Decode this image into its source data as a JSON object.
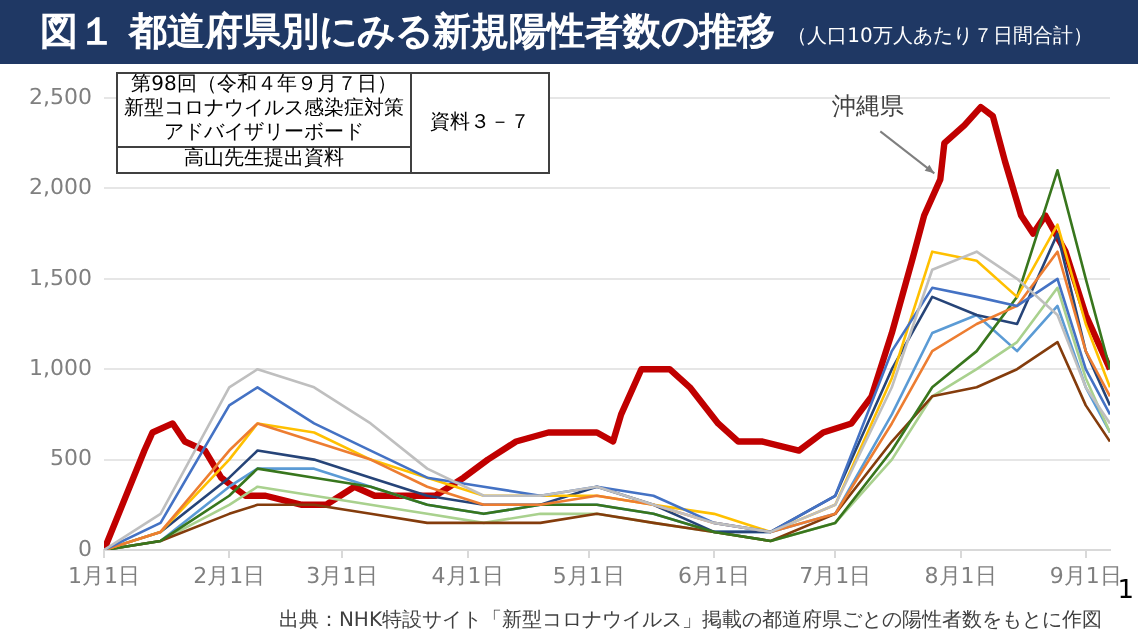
{
  "chart_data": {
    "type": "line",
    "title": "図１ 都道府県別にみる新規陽性者数の推移",
    "subtitle": "（人口10万人あたり７日間合計）",
    "x": [
      "--01-01",
      "--01-15",
      "--02-01",
      "--02-08",
      "--02-22",
      "--03-08",
      "--03-22",
      "--04-05",
      "--04-19",
      "--05-03",
      "--05-17",
      "--06-01",
      "--06-15",
      "--07-01",
      "--07-15",
      "--07-25",
      "--08-05",
      "--08-15",
      "--08-25",
      "--09-01",
      "--09-07"
    ],
    "series": [
      {
        "color": "#bfbfbf",
        "values": [
          0,
          200,
          900,
          1000,
          900,
          700,
          450,
          300,
          300,
          350,
          250,
          150,
          100,
          250,
          900,
          1550,
          1650,
          1500,
          1300,
          900,
          700
        ]
      },
      {
        "color": "#4472c4",
        "values": [
          0,
          150,
          800,
          900,
          700,
          550,
          400,
          350,
          300,
          350,
          300,
          150,
          100,
          300,
          1100,
          1450,
          1400,
          1350,
          1500,
          1000,
          750
        ]
      },
      {
        "color": "#ed7d31",
        "values": [
          0,
          100,
          550,
          700,
          600,
          500,
          350,
          250,
          250,
          300,
          250,
          150,
          100,
          200,
          700,
          1100,
          1250,
          1350,
          1650,
          1100,
          850
        ]
      },
      {
        "color": "#ffc000",
        "values": [
          0,
          100,
          500,
          700,
          650,
          500,
          400,
          300,
          300,
          300,
          250,
          200,
          100,
          250,
          950,
          1650,
          1600,
          1400,
          1800,
          1250,
          900
        ]
      },
      {
        "color": "#38761d",
        "values": [
          0,
          50,
          300,
          450,
          400,
          350,
          250,
          200,
          250,
          250,
          200,
          100,
          50,
          150,
          550,
          900,
          1100,
          1400,
          2100,
          1500,
          1000
        ]
      },
      {
        "color": "#264478",
        "values": [
          0,
          100,
          400,
          550,
          500,
          400,
          300,
          250,
          250,
          350,
          250,
          100,
          100,
          300,
          1000,
          1400,
          1300,
          1250,
          1750,
          1100,
          800
        ]
      },
      {
        "color": "#843c0c",
        "values": [
          0,
          50,
          200,
          250,
          250,
          200,
          150,
          150,
          150,
          200,
          150,
          100,
          50,
          200,
          600,
          850,
          900,
          1000,
          1150,
          800,
          600
        ]
      },
      {
        "color": "#a9d18e",
        "values": [
          0,
          50,
          250,
          350,
          300,
          250,
          200,
          150,
          200,
          200,
          150,
          100,
          50,
          150,
          500,
          850,
          1000,
          1150,
          1450,
          950,
          650
        ]
      },
      {
        "color": "#5b9bd5",
        "values": [
          0,
          50,
          350,
          450,
          450,
          350,
          250,
          200,
          250,
          250,
          200,
          100,
          100,
          200,
          750,
          1200,
          1300,
          1100,
          1350,
          900,
          650
        ]
      },
      {
        "name": "沖縄県",
        "color": "#c00000",
        "x": [
          "--01-01",
          "--01-11",
          "--01-13",
          "--01-18",
          "--01-21",
          "--01-26",
          "--01-30",
          "--02-02",
          "--02-05",
          "--02-10",
          "--02-19",
          "--02-25",
          "--03-04",
          "--03-09",
          "--03-17",
          "--03-24",
          "--03-31",
          "--04-06",
          "--04-13",
          "--04-21",
          "--04-30",
          "--05-03",
          "--05-07",
          "--05-09",
          "--05-14",
          "--05-21",
          "--05-26",
          "--06-02",
          "--06-07",
          "--06-13",
          "--06-22",
          "--06-28",
          "--07-05",
          "--07-10",
          "--07-15",
          "--07-20",
          "--07-23",
          "--07-27",
          "--07-28",
          "--08-02",
          "--08-06",
          "--08-09",
          "--08-12",
          "--08-16",
          "--08-19",
          "--08-22",
          "--08-27",
          "--09-01",
          "--09-07"
        ],
        "values": [
          0,
          550,
          650,
          700,
          600,
          550,
          400,
          350,
          300,
          300,
          250,
          250,
          350,
          300,
          300,
          300,
          400,
          500,
          600,
          650,
          650,
          650,
          600,
          750,
          1000,
          1000,
          900,
          700,
          600,
          600,
          550,
          650,
          700,
          850,
          1200,
          1600,
          1850,
          2050,
          2250,
          2350,
          2450,
          2400,
          2150,
          1850,
          1750,
          1850,
          1650,
          1300,
          1000
        ]
      }
    ],
    "xlim": [
      "--01-01",
      "--09-07"
    ],
    "xticks": [
      {
        "value": "--01-01",
        "label": "1月1日"
      },
      {
        "value": "--02-01",
        "label": "2月1日"
      },
      {
        "value": "--03-01",
        "label": "3月1日"
      },
      {
        "value": "--04-01",
        "label": "4月1日"
      },
      {
        "value": "--05-01",
        "label": "5月1日"
      },
      {
        "value": "--06-01",
        "label": "6月1日"
      },
      {
        "value": "--07-01",
        "label": "7月1日"
      },
      {
        "value": "--08-01",
        "label": "8月1日"
      },
      {
        "value": "--09-01",
        "label": "9月1日"
      }
    ],
    "ylim": [
      0,
      2500
    ],
    "yticks": [
      0,
      500,
      {
        "value": 1000,
        "label": "1,000"
      },
      {
        "value": 1500,
        "label": "1,500"
      },
      {
        "value": 2000,
        "label": "2,000"
      },
      {
        "value": 2500,
        "label": "2,500"
      }
    ],
    "grid": "y",
    "legend": false,
    "marker": "none",
    "annotations": [
      "第98回（令和４年９月７日）",
      "新型コロナウイルス感染症対策",
      "アドバイザリーボード",
      "資料３－７",
      "高山先生提出資料",
      "出典：NHK特設サイト「新型コロナウイルス」掲載の都道府県ごとの陽性者数をもとに作図",
      "1"
    ]
  }
}
